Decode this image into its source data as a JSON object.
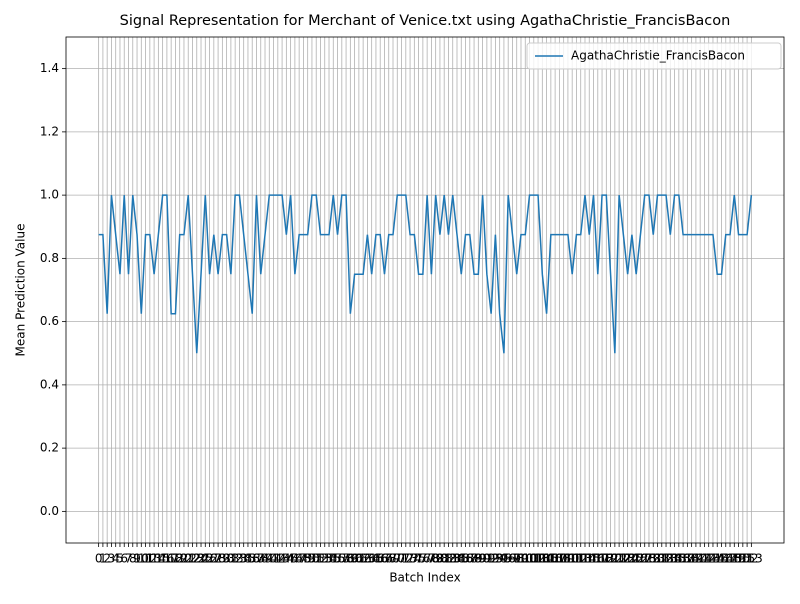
{
  "chart_data": {
    "type": "line",
    "title": "Signal Representation for Merchant of Venice.txt using AgathaChristie_FrancisBacon",
    "x_label": "Batch Index",
    "y_label": "Mean Prediction Value",
    "x": [
      0,
      1,
      2,
      3,
      4,
      5,
      6,
      7,
      8,
      9,
      10,
      11,
      12,
      13,
      14,
      15,
      16,
      17,
      18,
      19,
      20,
      21,
      22,
      23,
      24,
      25,
      26,
      27,
      28,
      29,
      30,
      31,
      32,
      33,
      34,
      35,
      36,
      37,
      38,
      39,
      40,
      41,
      42,
      43,
      44,
      45,
      46,
      47,
      48,
      49,
      50,
      51,
      52,
      53,
      54,
      55,
      56,
      57,
      58,
      59,
      60,
      61,
      62,
      63,
      64,
      65,
      66,
      67,
      68,
      69,
      70,
      71,
      72,
      73,
      74,
      75,
      76,
      77,
      78,
      79,
      80,
      81,
      82,
      83,
      84,
      85,
      86,
      87,
      88,
      89,
      90,
      91,
      92,
      93,
      94,
      95,
      96,
      97,
      98,
      99,
      100,
      101,
      102,
      103,
      104,
      105,
      106,
      107,
      108,
      109,
      110,
      111,
      112,
      113,
      114,
      115,
      116,
      117,
      118,
      119,
      120,
      121,
      122,
      123,
      124,
      125,
      126,
      127,
      128,
      129,
      130,
      131,
      132,
      133,
      134,
      135,
      136,
      137,
      138,
      139,
      140,
      141,
      142,
      143,
      144,
      145,
      146,
      147,
      148,
      149,
      150,
      151,
      152,
      153
    ],
    "series": [
      {
        "name": "AgathaChristie_FrancisBacon",
        "color": "#1f77b4",
        "values": [
          0.875,
          0.875,
          0.625,
          1.0,
          0.875,
          0.75,
          1.0,
          0.75,
          1.0,
          0.875,
          0.625,
          0.875,
          0.875,
          0.75,
          0.875,
          1.0,
          1.0,
          0.625,
          0.625,
          0.875,
          0.875,
          1.0,
          0.75,
          0.5,
          0.75,
          1.0,
          0.75,
          0.875,
          0.75,
          0.875,
          0.875,
          0.75,
          1.0,
          1.0,
          0.875,
          0.75,
          0.625,
          1.0,
          0.75,
          0.875,
          1.0,
          1.0,
          1.0,
          1.0,
          0.875,
          1.0,
          0.75,
          0.875,
          0.875,
          0.875,
          1.0,
          1.0,
          0.875,
          0.875,
          0.875,
          1.0,
          0.875,
          1.0,
          1.0,
          0.625,
          0.75,
          0.75,
          0.75,
          0.875,
          0.75,
          0.875,
          0.875,
          0.75,
          0.875,
          0.875,
          1.0,
          1.0,
          1.0,
          0.875,
          0.875,
          0.75,
          0.75,
          1.0,
          0.75,
          1.0,
          0.875,
          1.0,
          0.875,
          1.0,
          0.875,
          0.75,
          0.875,
          0.875,
          0.75,
          0.75,
          1.0,
          0.75,
          0.625,
          0.875,
          0.625,
          0.5,
          1.0,
          0.875,
          0.75,
          0.875,
          0.875,
          1.0,
          1.0,
          1.0,
          0.75,
          0.625,
          0.875,
          0.875,
          0.875,
          0.875,
          0.875,
          0.75,
          0.875,
          0.875,
          1.0,
          0.875,
          1.0,
          0.75,
          1.0,
          1.0,
          0.75,
          0.5,
          1.0,
          0.875,
          0.75,
          0.875,
          0.75,
          0.875,
          1.0,
          1.0,
          0.875,
          1.0,
          1.0,
          1.0,
          0.875,
          1.0,
          1.0,
          0.875,
          0.875,
          0.875,
          0.875,
          0.875,
          0.875,
          0.875,
          0.875,
          0.75,
          0.75,
          0.875,
          0.875,
          1.0,
          0.875,
          0.875,
          0.875,
          1.0
        ]
      }
    ],
    "xlim": [
      -7.65,
      160.65
    ],
    "xticks": [
      0,
      1,
      2,
      3,
      4,
      5,
      6,
      7,
      8,
      9,
      10,
      11,
      12,
      13,
      14,
      15,
      16,
      17,
      18,
      19,
      20,
      21,
      22,
      23,
      24,
      25,
      26,
      27,
      28,
      29,
      30,
      31,
      32,
      33,
      34,
      35,
      36,
      37,
      38,
      39,
      40,
      41,
      42,
      43,
      44,
      45,
      46,
      47,
      48,
      49,
      50,
      51,
      52,
      53,
      54,
      55,
      56,
      57,
      58,
      59,
      60,
      61,
      62,
      63,
      64,
      65,
      66,
      67,
      68,
      69,
      70,
      71,
      72,
      73,
      74,
      75,
      76,
      77,
      78,
      79,
      80,
      81,
      82,
      83,
      84,
      85,
      86,
      87,
      88,
      89,
      90,
      91,
      92,
      93,
      94,
      95,
      96,
      97,
      98,
      99,
      100,
      101,
      102,
      103,
      104,
      105,
      106,
      107,
      108,
      109,
      110,
      111,
      112,
      113,
      114,
      115,
      116,
      117,
      118,
      119,
      120,
      121,
      122,
      123,
      124,
      125,
      126,
      127,
      128,
      129,
      130,
      131,
      132,
      133,
      134,
      135,
      136,
      137,
      138,
      139,
      140,
      141,
      142,
      143,
      144,
      145,
      146,
      147,
      148,
      149,
      150,
      151,
      152,
      153
    ],
    "ylim": [
      -0.1,
      1.5
    ],
    "yticks": [
      {
        "value": 0,
        "label": "0.0"
      },
      0.2,
      0.4,
      0.6,
      0.8,
      {
        "value": 1,
        "label": "1.0"
      },
      1.2,
      1.4
    ],
    "grid": true,
    "legend": "upper right"
  }
}
